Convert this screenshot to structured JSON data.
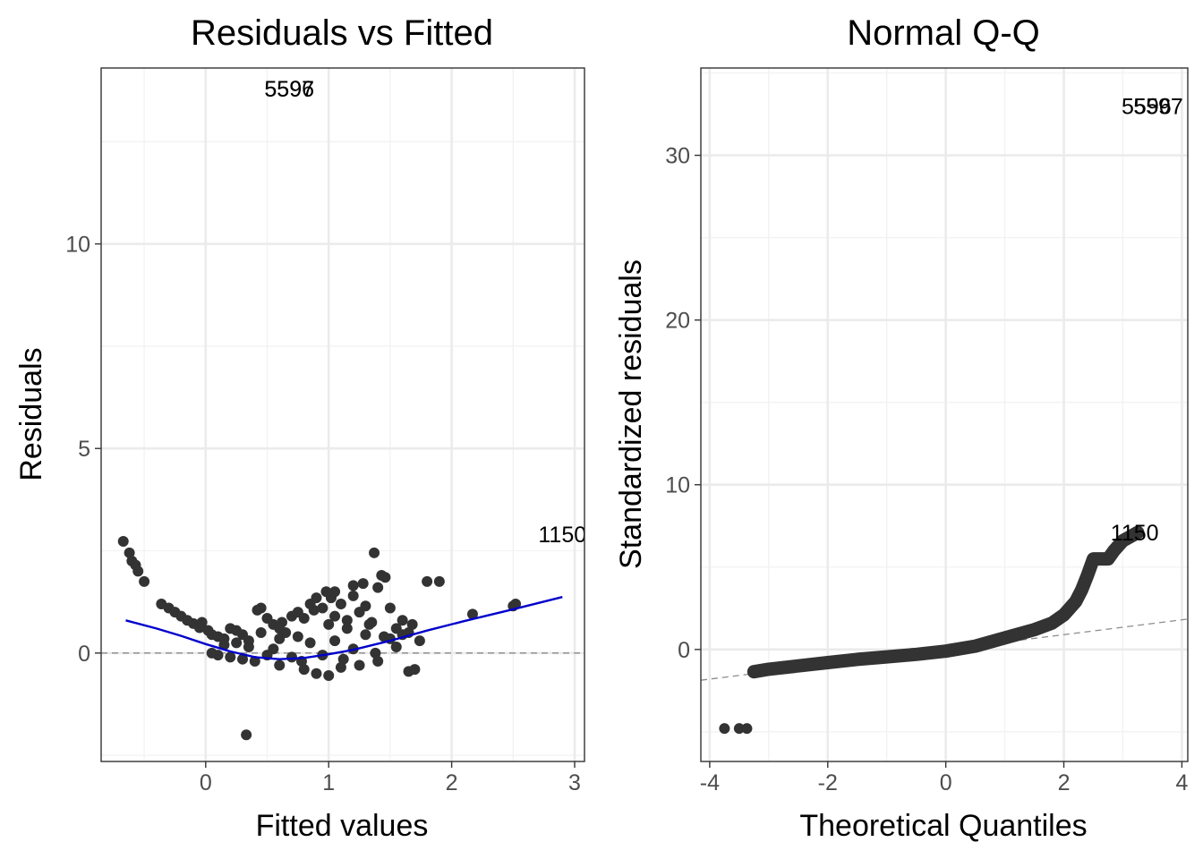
{
  "chart_data": [
    {
      "type": "scatter",
      "title": "Residuals vs Fitted",
      "xlabel": "Fitted values",
      "ylabel": "Residuals",
      "xlim": [
        -0.85,
        3.08
      ],
      "ylim": [
        -2.65,
        14.3
      ],
      "xticks": [
        0,
        1,
        2,
        3
      ],
      "xtick_labels": [
        "0",
        "1",
        "2",
        "3"
      ],
      "yticks": [
        0,
        5,
        10
      ],
      "ytick_labels": [
        "0",
        "5",
        "10"
      ],
      "grid": true,
      "reference_line": {
        "type": "hline",
        "y": 0,
        "style": "dashed",
        "color": "#8c8c8c"
      },
      "smooth": {
        "color": "#0000cc",
        "x": [
          -0.65,
          -0.4,
          -0.2,
          0.0,
          0.2,
          0.4,
          0.6,
          0.8,
          1.0,
          1.2,
          1.5,
          1.8,
          2.1,
          2.5,
          2.9
        ],
        "y": [
          0.8,
          0.6,
          0.42,
          0.22,
          0.04,
          -0.1,
          -0.15,
          -0.12,
          -0.03,
          0.08,
          0.3,
          0.55,
          0.78,
          1.07,
          1.37
        ]
      },
      "point_color": "#333333",
      "points": [
        [
          -0.67,
          2.73
        ],
        [
          -0.62,
          2.45
        ],
        [
          -0.6,
          2.25
        ],
        [
          -0.57,
          2.15
        ],
        [
          -0.55,
          2.0
        ],
        [
          -0.5,
          1.75
        ],
        [
          -0.36,
          1.2
        ],
        [
          -0.3,
          1.1
        ],
        [
          -0.25,
          1.0
        ],
        [
          -0.2,
          0.9
        ],
        [
          -0.15,
          0.8
        ],
        [
          -0.1,
          0.72
        ],
        [
          -0.05,
          0.62
        ],
        [
          -0.03,
          0.75
        ],
        [
          0.02,
          0.55
        ],
        [
          0.05,
          0.45
        ],
        [
          0.1,
          0.4
        ],
        [
          0.15,
          0.35
        ],
        [
          0.2,
          0.6
        ],
        [
          0.25,
          0.55
        ],
        [
          0.3,
          0.45
        ],
        [
          0.35,
          0.3
        ],
        [
          0.42,
          1.05
        ],
        [
          0.45,
          1.1
        ],
        [
          0.5,
          0.85
        ],
        [
          0.55,
          0.7
        ],
        [
          0.6,
          0.6
        ],
        [
          0.65,
          0.5
        ],
        [
          0.7,
          0.9
        ],
        [
          0.75,
          1.0
        ],
        [
          0.8,
          0.85
        ],
        [
          0.85,
          1.2
        ],
        [
          0.9,
          1.35
        ],
        [
          0.95,
          1.1
        ],
        [
          0.98,
          1.5
        ],
        [
          1.02,
          1.35
        ],
        [
          1.05,
          0.9
        ],
        [
          1.1,
          1.2
        ],
        [
          1.15,
          0.8
        ],
        [
          1.2,
          1.4
        ],
        [
          1.25,
          1.0
        ],
        [
          1.3,
          1.15
        ],
        [
          1.33,
          0.7
        ],
        [
          1.37,
          2.45
        ],
        [
          1.4,
          1.6
        ],
        [
          1.43,
          1.9
        ],
        [
          1.46,
          1.85
        ],
        [
          1.5,
          1.1
        ],
        [
          1.55,
          0.6
        ],
        [
          1.6,
          0.8
        ],
        [
          1.65,
          0.5
        ],
        [
          1.68,
          0.7
        ],
        [
          1.2,
          1.65
        ],
        [
          1.28,
          1.7
        ],
        [
          1.05,
          1.5
        ],
        [
          0.88,
          1.05
        ],
        [
          0.62,
          0.75
        ],
        [
          1.8,
          1.75
        ],
        [
          1.74,
          0.3
        ],
        [
          1.9,
          1.75
        ],
        [
          2.17,
          0.95
        ],
        [
          2.5,
          1.15
        ],
        [
          2.52,
          1.2
        ],
        [
          1.65,
          -0.45
        ],
        [
          1.7,
          -0.4
        ],
        [
          0.33,
          -2.0
        ],
        [
          0.3,
          -0.15
        ],
        [
          0.4,
          -0.2
        ],
        [
          0.6,
          -0.3
        ],
        [
          0.8,
          -0.4
        ],
        [
          1.0,
          -0.55
        ],
        [
          0.9,
          -0.5
        ],
        [
          1.1,
          -0.35
        ],
        [
          1.25,
          -0.3
        ],
        [
          1.4,
          -0.2
        ],
        [
          0.2,
          -0.1
        ],
        [
          0.1,
          -0.05
        ],
        [
          0.05,
          0.0
        ],
        [
          0.7,
          -0.1
        ],
        [
          0.95,
          -0.05
        ],
        [
          1.2,
          0.1
        ],
        [
          1.45,
          0.4
        ],
        [
          0.55,
          0.1
        ],
        [
          0.35,
          0.15
        ],
        [
          0.15,
          0.2
        ],
        [
          0.85,
          0.25
        ],
        [
          1.05,
          0.3
        ],
        [
          1.3,
          0.45
        ],
        [
          1.5,
          0.35
        ],
        [
          0.45,
          0.5
        ],
        [
          0.75,
          0.4
        ],
        [
          1.15,
          0.6
        ],
        [
          1.35,
          0.75
        ],
        [
          1.6,
          0.45
        ],
        [
          1.0,
          0.7
        ],
        [
          0.6,
          0.35
        ],
        [
          0.25,
          0.25
        ],
        [
          0.5,
          -0.05
        ],
        [
          0.78,
          -0.2
        ],
        [
          1.12,
          -0.15
        ],
        [
          1.38,
          0.0
        ],
        [
          1.55,
          0.15
        ]
      ],
      "point_labels": [
        {
          "text": "5597",
          "x": 0.68,
          "y": 13.8
        },
        {
          "text": "5596",
          "x": 0.68,
          "y": 13.8
        },
        {
          "text": "1150",
          "x": 2.9,
          "y": 2.9
        }
      ]
    },
    {
      "type": "scatter",
      "title": "Normal Q-Q",
      "xlabel": "Theoretical Quantiles",
      "ylabel": "Standardized residuals",
      "xlim": [
        -4.15,
        4.1
      ],
      "ylim": [
        -6.8,
        35.3
      ],
      "xticks": [
        -4,
        -2,
        0,
        2,
        4
      ],
      "xtick_labels": [
        "-4",
        "-2",
        "0",
        "2",
        "4"
      ],
      "yticks": [
        0,
        10,
        20,
        30
      ],
      "ytick_labels": [
        "0",
        "10",
        "20",
        "30"
      ],
      "grid": true,
      "reference_line": {
        "type": "abline",
        "intercept": 0,
        "slope": 0.45,
        "style": "dashed",
        "color": "#8c8c8c"
      },
      "point_color": "#333333",
      "qq_curve": {
        "x": [
          -3.25,
          -3.0,
          -2.5,
          -2.0,
          -1.5,
          -1.0,
          -0.5,
          0.0,
          0.5,
          1.0,
          1.5,
          1.8,
          2.0,
          2.2,
          2.3,
          2.4,
          2.5,
          2.6,
          2.75,
          2.85,
          3.0,
          3.15,
          3.25
        ],
        "y": [
          -1.35,
          -1.2,
          -1.0,
          -0.8,
          -0.6,
          -0.45,
          -0.3,
          -0.1,
          0.2,
          0.7,
          1.2,
          1.6,
          2.1,
          2.9,
          3.6,
          4.5,
          5.5,
          5.5,
          5.5,
          6.0,
          6.6,
          6.9,
          7.1
        ]
      },
      "points": [
        [
          -3.75,
          -4.8
        ],
        [
          -3.5,
          -4.8
        ],
        [
          -3.37,
          -4.8
        ]
      ],
      "point_labels": [
        {
          "text": "5596",
          "x": 3.4,
          "y": 33.0
        },
        {
          "text": "5597",
          "x": 3.6,
          "y": 33.0
        },
        {
          "text": "1150",
          "x": 3.2,
          "y": 7.1
        }
      ]
    }
  ]
}
